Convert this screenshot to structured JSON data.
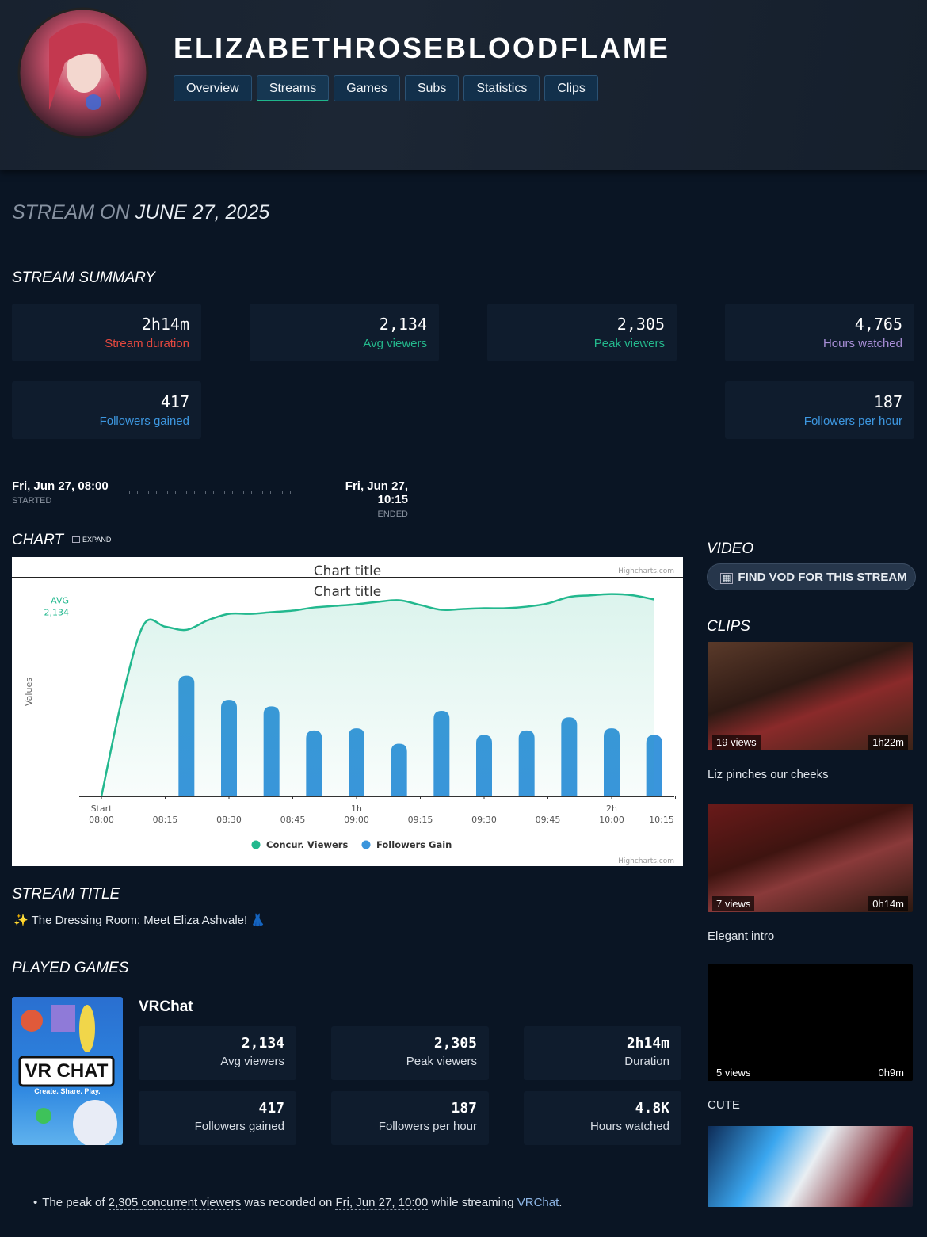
{
  "header": {
    "name": "ELIZABETHROSEBLOODFLAME",
    "tabs": [
      "Overview",
      "Streams",
      "Games",
      "Subs",
      "Statistics",
      "Clips"
    ],
    "active_tab": 1
  },
  "page_heading": {
    "prefix": "STREAM ON",
    "date": "JUNE 27, 2025"
  },
  "summary": {
    "title": "STREAM SUMMARY",
    "stats": [
      {
        "value": "2h14m",
        "label": "Stream duration",
        "color": "#e5483f"
      },
      {
        "value": "2,134",
        "label": "Avg viewers",
        "color": "#24b98d"
      },
      {
        "value": "2,305",
        "label": "Peak viewers",
        "color": "#24b98d"
      },
      {
        "value": "4,765",
        "label": "Hours watched",
        "color": "#a98fd8"
      },
      {
        "value": "417",
        "label": "Followers gained",
        "color": "#3d97e0"
      },
      {
        "value": "187",
        "label": "Followers per hour",
        "color": "#3d97e0"
      }
    ]
  },
  "timeline": {
    "start": "Fri, Jun 27, 08:00",
    "start_label": "STARTED",
    "end": "Fri, Jun 27, 10:15",
    "end_label": "ENDED"
  },
  "chart_section": {
    "title": "CHART",
    "expand": "EXPAND"
  },
  "chart_data": {
    "type": "combo",
    "title": "Chart title",
    "subtitle": "Chart title",
    "credits": "Highcharts.com",
    "y_label": "Values",
    "xlim": [
      "08:00",
      "10:15"
    ],
    "xticks": [
      "08:00",
      "08:15",
      "08:30",
      "08:45",
      "09:00",
      "09:15",
      "09:30",
      "09:45",
      "10:00",
      "10:15"
    ],
    "xtick_top_labels": [
      "Start",
      null,
      null,
      null,
      "1h",
      null,
      null,
      null,
      "2h",
      null
    ],
    "ylim": [
      0,
      2500
    ],
    "y2lim": [
      0,
      100
    ],
    "plot_lines": [
      {
        "value": 2134,
        "label": "AVG",
        "value_label": "2,134"
      }
    ],
    "legend": "bottom",
    "series": [
      {
        "name": "Concur. Viewers",
        "color": "#22b88e",
        "x": [
          "08:00",
          "08:05",
          "08:10",
          "08:15",
          "08:20",
          "08:25",
          "08:30",
          "08:35",
          "08:40",
          "08:45",
          "08:50",
          "08:55",
          "09:00",
          "09:05",
          "09:10",
          "09:15",
          "09:20",
          "09:25",
          "09:30",
          "09:35",
          "09:40",
          "09:45",
          "09:50",
          "09:55",
          "10:00",
          "10:05",
          "10:10"
        ],
        "values": [
          0,
          1140,
          1960,
          1933,
          1897,
          2006,
          2079,
          2079,
          2098,
          2116,
          2152,
          2170,
          2189,
          2216,
          2234,
          2180,
          2125,
          2134,
          2143,
          2143,
          2161,
          2198,
          2271,
          2290,
          2305,
          2290,
          2243
        ]
      },
      {
        "name": "Followers Gain",
        "color": "#3a95dc",
        "axis": "y2",
        "x": [
          "08:20",
          "08:30",
          "08:40",
          "08:50",
          "09:00",
          "09:10",
          "09:20",
          "09:30",
          "09:40",
          "09:50",
          "10:00",
          "10:10"
        ],
        "values": [
          55,
          44,
          41,
          30,
          31,
          24,
          39,
          28,
          30,
          36,
          31,
          28
        ]
      }
    ]
  },
  "stream_title": {
    "heading": "STREAM TITLE",
    "text": "✨ The Dressing Room: Meet Eliza Ashvale! 👗"
  },
  "played_games": {
    "heading": "PLAYED GAMES",
    "games": [
      {
        "name": "VRChat",
        "cover": {
          "logo": "VR CHAT",
          "tagline": "Create. Share. Play."
        },
        "stats": [
          {
            "value": "2,134",
            "label": "Avg viewers"
          },
          {
            "value": "2,305",
            "label": "Peak viewers"
          },
          {
            "value": "2h14m",
            "label": "Duration"
          },
          {
            "value": "417",
            "label": "Followers gained"
          },
          {
            "value": "187",
            "label": "Followers per hour"
          },
          {
            "value": "4.8K",
            "label": "Hours watched"
          }
        ]
      }
    ]
  },
  "peak_note": {
    "parts": [
      "The peak of ",
      "2,305 concurrent viewers",
      " was recorded on ",
      "Fri, Jun 27, 10:00",
      " while streaming ",
      "VRChat",
      "."
    ]
  },
  "video": {
    "heading": "VIDEO",
    "button": "FIND VOD FOR THIS STREAM"
  },
  "clips": {
    "heading": "CLIPS",
    "items": [
      {
        "views": "19 views",
        "duration": "1h22m",
        "title": "Liz pinches our cheeks"
      },
      {
        "views": "7 views",
        "duration": "0h14m",
        "title": "Elegant intro"
      },
      {
        "views": "5 views",
        "duration": "0h9m",
        "title": "CUTE"
      }
    ]
  }
}
